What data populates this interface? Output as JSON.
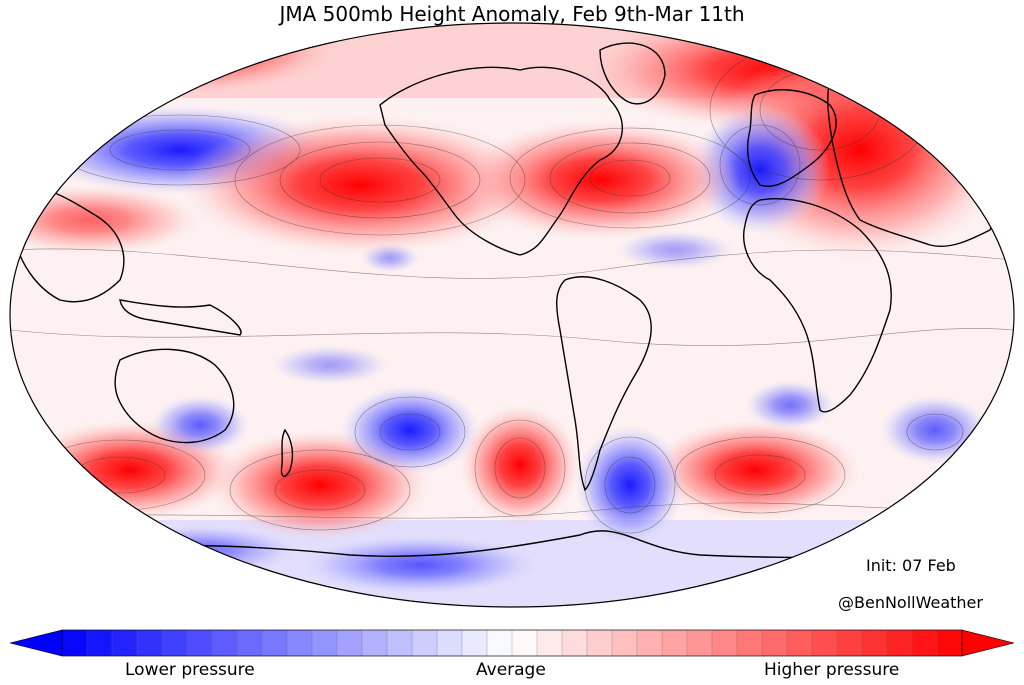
{
  "title": "JMA 500mb Height Anomaly, Feb 9th-Mar 11th",
  "init": "Init: 07 Feb",
  "credit": "@BenNollWeather",
  "colorbar": {
    "lower_label": "Lower pressure",
    "average_label": "Average",
    "higher_label": "Higher pressure",
    "low_color": "#0000ff",
    "mid_color": "#ffffff",
    "high_color": "#ff0000",
    "bins": 36
  },
  "colors": {
    "ocean_bg": "#fdf3f3",
    "coast": "#000000",
    "contour": "#333333"
  },
  "anomalies": [
    {
      "name": "ne-pacific-ridge",
      "sign": "high",
      "strength": 1.0
    },
    {
      "name": "eastern-us-ridge",
      "sign": "high",
      "strength": 1.0
    },
    {
      "name": "western-russia-ridge",
      "sign": "high",
      "strength": 1.0
    },
    {
      "name": "arctic-greenland-ridge",
      "sign": "high",
      "strength": 0.7
    },
    {
      "name": "north-pacific-trough",
      "sign": "low",
      "strength": 0.8
    },
    {
      "name": "europe-trough",
      "sign": "low",
      "strength": 0.9
    },
    {
      "name": "south-pacific-ridge-west",
      "sign": "high",
      "strength": 0.7
    },
    {
      "name": "south-pacific-ridge-central",
      "sign": "high",
      "strength": 0.6
    },
    {
      "name": "south-atlantic-ridge",
      "sign": "high",
      "strength": 0.8
    },
    {
      "name": "south-indian-ridge",
      "sign": "high",
      "strength": 0.6
    },
    {
      "name": "drake-passage-trough",
      "sign": "low",
      "strength": 0.7
    },
    {
      "name": "south-pacific-trough",
      "sign": "low",
      "strength": 0.6
    },
    {
      "name": "antarctic-trough",
      "sign": "low",
      "strength": 0.4
    }
  ]
}
